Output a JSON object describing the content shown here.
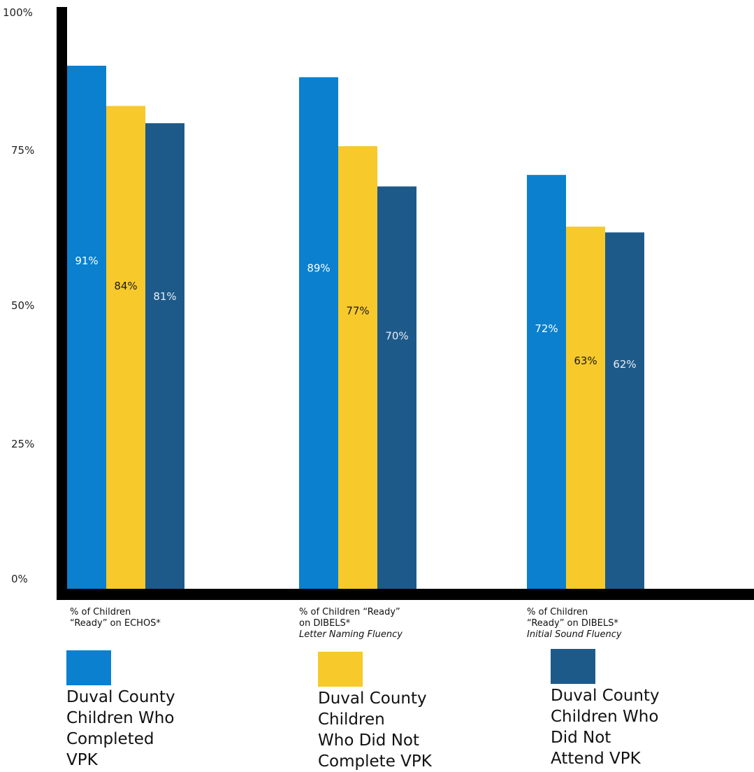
{
  "chart_data": {
    "type": "bar",
    "ylim": [
      0,
      100
    ],
    "yticks": [
      "100%",
      "75%",
      "50%",
      "25%",
      "0%"
    ],
    "grid": false,
    "legend_placement": "bottom",
    "categories": [
      {
        "line1": "% of Children",
        "line2": "“Ready” on ECHOS*",
        "sub": ""
      },
      {
        "line1": "% of Children “Ready”",
        "line2": "on DIBELS*",
        "sub": "Letter Naming Fluency"
      },
      {
        "line1": "% of Children",
        "line2": "“Ready” on DIBELS*",
        "sub": "Initial Sound Fluency"
      }
    ],
    "series": [
      {
        "name": "Duval County Children Who Completed VPK",
        "color": "#0a80cf",
        "labelColor": "#ffffff",
        "values": [
          91,
          89,
          72
        ],
        "labels": [
          "91%",
          "89%",
          "72%"
        ]
      },
      {
        "name": "Duval County Children Who Did Not Complete VPK",
        "color": "#f7c92b",
        "labelColor": "#1a1a1a",
        "values": [
          84,
          77,
          63
        ],
        "labels": [
          "84%",
          "77%",
          "63%"
        ]
      },
      {
        "name": "Duval County Children Who Did Not Attend VPK",
        "color": "#1d5a8a",
        "labelColor": "#e8eef4",
        "values": [
          81,
          70,
          62
        ],
        "labels": [
          "81%",
          "70%",
          "62%"
        ]
      }
    ]
  },
  "legend": [
    {
      "lines": [
        "Duval County",
        "Children Who",
        "Completed",
        "VPK"
      ]
    },
    {
      "lines": [
        "Duval County",
        "Children",
        "Who Did Not",
        "Complete VPK"
      ]
    },
    {
      "lines": [
        "Duval County",
        "Children Who",
        "Did Not",
        "Attend VPK"
      ]
    }
  ]
}
